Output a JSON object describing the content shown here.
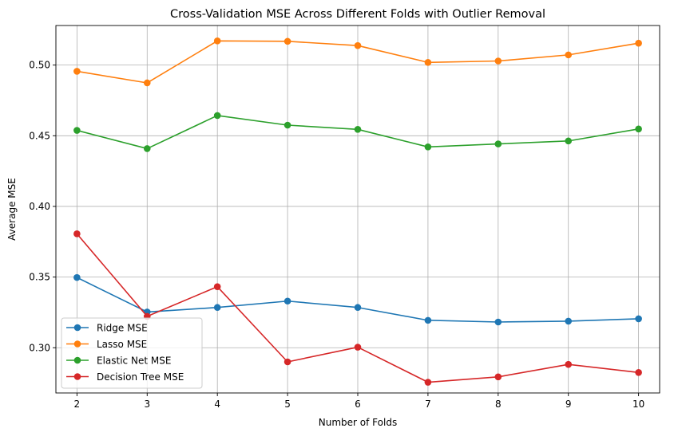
{
  "chart_data": {
    "type": "line",
    "title": "Cross-Validation MSE Across Different Folds with Outlier Removal",
    "xlabel": "Number of Folds",
    "ylabel": "Average MSE",
    "x": [
      2,
      3,
      4,
      5,
      6,
      7,
      8,
      9,
      10
    ],
    "xlim": [
      1.7,
      10.3
    ],
    "ylim": [
      0.268,
      0.528
    ],
    "yticks": [
      0.3,
      0.35,
      0.4,
      0.45,
      0.5
    ],
    "ytick_labels": [
      "0.30",
      "0.35",
      "0.40",
      "0.45",
      "0.50"
    ],
    "xtick_labels": [
      "2",
      "3",
      "4",
      "5",
      "6",
      "7",
      "8",
      "9",
      "10"
    ],
    "grid": true,
    "legend_position": "lower-left",
    "series": [
      {
        "name": "Ridge MSE",
        "color": "#1f77b4",
        "values": [
          0.3497,
          0.3253,
          0.3285,
          0.333,
          0.3285,
          0.3194,
          0.3182,
          0.3188,
          0.3205
        ]
      },
      {
        "name": "Lasso MSE",
        "color": "#ff7f0e",
        "values": [
          0.4956,
          0.4874,
          0.5171,
          0.5168,
          0.5138,
          0.5019,
          0.5029,
          0.5072,
          0.5155
        ]
      },
      {
        "name": "Elastic Net MSE",
        "color": "#2ca02c",
        "values": [
          0.4538,
          0.4409,
          0.4643,
          0.4575,
          0.4545,
          0.4421,
          0.4442,
          0.4463,
          0.4548
        ]
      },
      {
        "name": "Decision Tree MSE",
        "color": "#d62728",
        "values": [
          0.3806,
          0.3222,
          0.3432,
          0.29,
          0.3004,
          0.2756,
          0.2794,
          0.2882,
          0.2825
        ]
      }
    ]
  }
}
